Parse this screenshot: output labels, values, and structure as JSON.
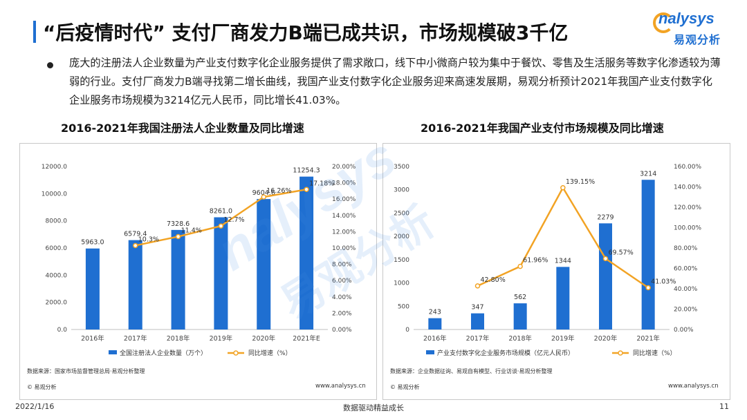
{
  "header": {
    "title": "“后疫情时代” 支付厂商发力B端已成共识，市场规模破3千亿",
    "logo_en": "nalysys",
    "logo_cn": "易观分析"
  },
  "bullet": "庞大的注册法人企业数量为产业支付数字化企业服务提供了需求敞口，线下中小微商户较为集中于餐饮、零售及生活服务等数字化渗透较为薄弱的行业。支付厂商发力B端寻找第二增长曲线，我国产业支付数字化企业服务迎来高速发展期，易观分析预计2021年我国产业支付数字化企业服务市场规模为3214亿元人民币，同比增长41.03%。",
  "left_panel": {
    "title": "2016-2021年我国注册法人企业数量及同比增速",
    "source": "数据来源：国家市场监督管理总局·易观分析整理",
    "copyright": "© 易观分析",
    "url": "www.analysys.cn"
  },
  "right_panel": {
    "title": "2016-2021年我国产业支付市场规模及同比增速",
    "source": "数据来源：企业数据征询、易观自有模型、行业访谈·易观分析整理",
    "copyright": "© 易观分析",
    "url": "www.analysys.cn"
  },
  "watermark": {
    "en": "nalysys",
    "cn": "易观分析"
  },
  "footer": {
    "date": "2022/1/16",
    "slogan": "数据驱动精益成长",
    "page": "11"
  },
  "colors": {
    "bar": "#1f6fd1",
    "line": "#f2a324",
    "accent": "#1f6fd1"
  },
  "chart_data": [
    {
      "type": "bar",
      "categories": [
        "2016年",
        "2017年",
        "2018年",
        "2019年",
        "2020年",
        "2021年E"
      ],
      "series": [
        {
          "name": "全国注册法人企业数量（万个）",
          "type": "bar",
          "axis": "left",
          "values": [
            5963.0,
            6579.4,
            7328.6,
            8261.0,
            9604.6,
            11254.3
          ],
          "labels": [
            "5963.0",
            "6579.4",
            "7328.6",
            "8261.0",
            "9604.6",
            "11254.3"
          ]
        },
        {
          "name": "同比增速（%）",
          "type": "line",
          "axis": "right",
          "values": [
            null,
            10.3,
            11.4,
            12.7,
            16.26,
            17.18
          ],
          "labels": [
            "",
            "10.3%",
            "11.4%",
            "12.7%",
            "16.26%",
            "17.18%"
          ]
        }
      ],
      "ylim_left": [
        0,
        12000
      ],
      "yticks_left": [
        "0.0",
        "2000.0",
        "4000.0",
        "6000.0",
        "8000.0",
        "10000.0",
        "12000.0"
      ],
      "ylim_right": [
        0,
        20
      ],
      "yticks_right": [
        "0.00%",
        "2.00%",
        "4.00%",
        "6.00%",
        "8.00%",
        "10.00%",
        "12.00%",
        "14.00%",
        "16.00%",
        "18.00%",
        "20.00%"
      ],
      "legend": "bottom"
    },
    {
      "type": "bar",
      "categories": [
        "2016年",
        "2017年",
        "2018年",
        "2019年",
        "2020年",
        "2021年"
      ],
      "series": [
        {
          "name": "产业支付数字化企业服务市场规模（亿元人民币）",
          "type": "bar",
          "axis": "left",
          "values": [
            243,
            347,
            562,
            1344,
            2279,
            3214
          ],
          "labels": [
            "243",
            "347",
            "562",
            "1344",
            "2279",
            "3214"
          ]
        },
        {
          "name": "同比增速（%）",
          "type": "line",
          "axis": "right",
          "values": [
            null,
            42.8,
            61.96,
            139.15,
            69.57,
            41.03
          ],
          "labels": [
            "",
            "42.80%",
            "61.96%",
            "139.15%",
            "69.57%",
            "41.03%"
          ]
        }
      ],
      "ylim_left": [
        0,
        3500
      ],
      "yticks_left": [
        "0",
        "500",
        "1000",
        "1500",
        "2000",
        "2500",
        "3000",
        "3500"
      ],
      "ylim_right": [
        0,
        160
      ],
      "yticks_right": [
        "0.00%",
        "20.00%",
        "40.00%",
        "60.00%",
        "80.00%",
        "100.00%",
        "120.00%",
        "140.00%",
        "160.00%"
      ],
      "legend": "bottom"
    }
  ]
}
